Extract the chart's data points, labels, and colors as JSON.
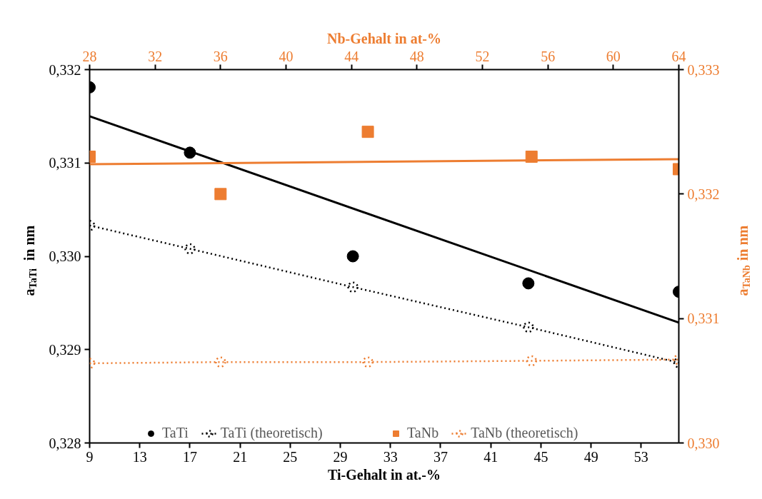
{
  "chart_data": [
    {
      "type": "scatter",
      "xlabel": "Ti-Gehalt in at.-%",
      "ylabel": "a$_{TaTi}$ in nm",
      "xlim": [
        9,
        56
      ],
      "xticks": [
        9,
        13,
        17,
        21,
        25,
        29,
        33,
        37,
        41,
        45,
        49,
        53
      ],
      "ylim": [
        0.328,
        0.332
      ],
      "yticks": [
        {
          "value": 0.328,
          "label": "0,328"
        },
        {
          "value": 0.329,
          "label": "0,329"
        },
        {
          "value": 0.33,
          "label": "0,330"
        },
        {
          "value": 0.331,
          "label": "0,331"
        },
        {
          "value": 0.332,
          "label": "0,332"
        }
      ],
      "grid": false,
      "legend": "bottom",
      "series": [
        {
          "name": "TaTi",
          "marker": "circle",
          "color": "#000000",
          "x": [
            9,
            17,
            30,
            44,
            56
          ],
          "values": [
            0.33181,
            0.33111,
            0.33,
            0.32971,
            0.32962
          ]
        },
        {
          "type": "line",
          "line_style": "solid",
          "color": "#000000",
          "x": [
            9,
            56
          ],
          "values": [
            0.3315,
            0.32929
          ]
        },
        {
          "name": "TaTi (theoretisch)",
          "type": "line",
          "line_style": "dotted",
          "marker": "circle",
          "color": "#000000",
          "x": [
            9,
            17,
            30,
            44,
            56
          ],
          "values": [
            0.33033,
            0.33008,
            0.32967,
            0.32924,
            0.32886
          ]
        }
      ]
    },
    {
      "type": "scatter",
      "xlabel": "Nb-Gehalt in at-%",
      "ylabel": "a$_{TaNb}$ in nm",
      "xlim": [
        28,
        64
      ],
      "xticks": [
        28,
        32,
        36,
        40,
        44,
        48,
        52,
        56,
        60,
        64
      ],
      "ylim": [
        0.33,
        0.333
      ],
      "yticks": [
        {
          "value": 0.33,
          "label": "0,330"
        },
        {
          "value": 0.331,
          "label": "0,331"
        },
        {
          "value": 0.332,
          "label": "0,332"
        },
        {
          "value": 0.333,
          "label": "0,333"
        }
      ],
      "grid": false,
      "legend": "bottom",
      "series": [
        {
          "name": "TaNb",
          "marker": "square",
          "color": "#ed7d31",
          "x": [
            28,
            36,
            45,
            55,
            64
          ],
          "values": [
            0.3323,
            0.332,
            0.3325,
            0.3323,
            0.3322
          ]
        },
        {
          "type": "line",
          "line_style": "solid",
          "color": "#ed7d31",
          "x": [
            28,
            64
          ],
          "values": [
            0.33224,
            0.33228
          ]
        },
        {
          "name": "TaNb (theoretisch)",
          "type": "line",
          "line_style": "dotted",
          "marker": "circle",
          "color": "#ed7d31",
          "x": [
            28,
            36,
            45,
            55,
            64
          ],
          "values": [
            0.33064,
            0.33065,
            0.33065,
            0.33066,
            0.33067
          ]
        }
      ]
    }
  ]
}
